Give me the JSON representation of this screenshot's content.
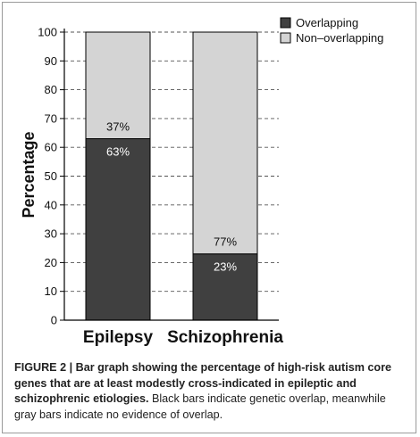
{
  "chart_data": {
    "type": "bar",
    "stacked": true,
    "categories": [
      "Epilepsy",
      "Schizophrenia"
    ],
    "series": [
      {
        "name": "Overlapping",
        "values": [
          63,
          23
        ],
        "labels": [
          "63%",
          "23%"
        ],
        "color": "#404040",
        "label_color": "#ffffff"
      },
      {
        "name": "Non–overlapping",
        "values": [
          37,
          77
        ],
        "labels": [
          "37%",
          "77%"
        ],
        "color": "#d4d4d4",
        "label_color": "#111111"
      }
    ],
    "ylabel": "Percentage",
    "xlabel": "",
    "ylim": [
      0,
      100
    ],
    "yticks": [
      0,
      10,
      20,
      30,
      40,
      50,
      60,
      70,
      80,
      90,
      100
    ],
    "grid": "dashed horizontal",
    "legend": "top-right"
  },
  "caption": {
    "figure_label": "FIGURE 2 | ",
    "bold_text": "Bar graph showing the percentage of high-risk autism core genes that are at least modestly cross-indicated in epileptic and schizophrenic etiologies.",
    "normal_text": " Black bars indicate genetic overlap, meanwhile gray bars indicate no evidence of overlap."
  }
}
